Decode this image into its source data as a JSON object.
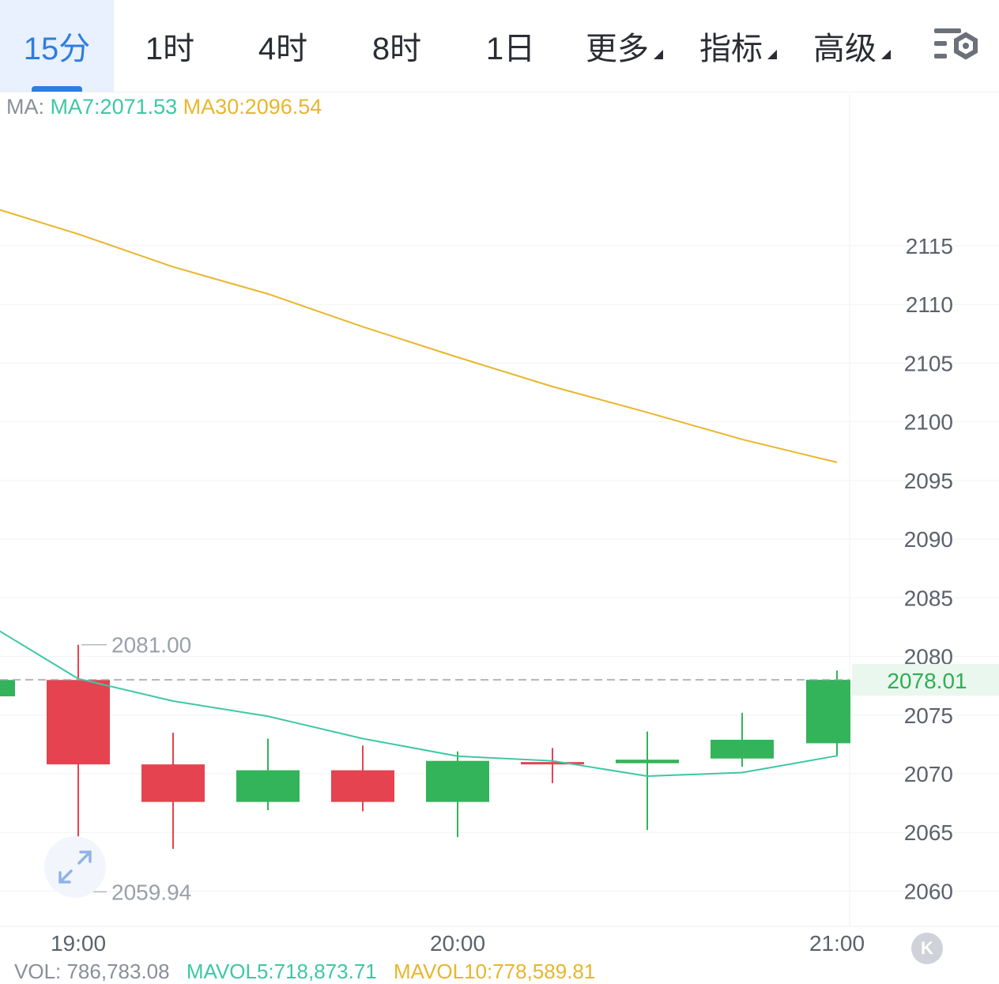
{
  "tabs": [
    {
      "label": "15分",
      "active": true
    },
    {
      "label": "1时"
    },
    {
      "label": "4时"
    },
    {
      "label": "8时"
    },
    {
      "label": "1日"
    },
    {
      "label": "更多",
      "dropdown": true
    },
    {
      "label": "指标",
      "dropdown": true
    },
    {
      "label": "高级",
      "dropdown": true
    }
  ],
  "legend": {
    "prefix": "MA:",
    "ma7": "MA7:2071.53",
    "ma30": "MA30:2096.54"
  },
  "colors": {
    "up": "#33b35a",
    "down": "#e5434f",
    "ma7": "#3ec7a5",
    "ma30": "#e8b62c",
    "accent": "#2f7de1"
  },
  "volume_row": {
    "vol": "VOL: 786,783.08",
    "mavol5": "MAVOL5:718,873.71",
    "mavol10": "MAVOL10:778,589.81"
  },
  "chart_data": {
    "type": "candlestick",
    "ylim": [
      2057,
      2128
    ],
    "yticks": [
      2060,
      2065,
      2070,
      2075,
      2080,
      2085,
      2090,
      2095,
      2100,
      2105,
      2110,
      2115
    ],
    "x_tick_labels": [
      "19:00",
      "20:00",
      "21:00"
    ],
    "x_tick_index": [
      0,
      4,
      8
    ],
    "candles": [
      {
        "open": 2076.6,
        "close": 2078.0,
        "high": 2078.0,
        "low": 2076.6
      },
      {
        "open": 2078.0,
        "close": 2070.8,
        "high": 2081.0,
        "low": 2059.94
      },
      {
        "open": 2070.8,
        "close": 2067.6,
        "high": 2073.5,
        "low": 2063.6
      },
      {
        "open": 2067.6,
        "close": 2070.3,
        "high": 2073.0,
        "low": 2066.9
      },
      {
        "open": 2070.3,
        "close": 2067.6,
        "high": 2072.4,
        "low": 2066.8
      },
      {
        "open": 2067.6,
        "close": 2071.1,
        "high": 2071.9,
        "low": 2064.6
      },
      {
        "open": 2071.0,
        "close": 2070.9,
        "high": 2072.2,
        "low": 2069.2
      },
      {
        "open": 2070.9,
        "close": 2071.2,
        "high": 2073.6,
        "low": 2065.2
      },
      {
        "open": 2071.3,
        "close": 2072.9,
        "high": 2075.2,
        "low": 2070.6
      },
      {
        "open": 2072.6,
        "close": 2078.01,
        "high": 2078.8,
        "low": 2071.5
      }
    ],
    "series": [
      {
        "name": "MA7",
        "values": [
          2083.0,
          2078.1,
          2076.2,
          2074.9,
          2073.0,
          2071.5,
          2071.1,
          2069.8,
          2070.1,
          2071.53
        ]
      },
      {
        "name": "MA30",
        "values": [
          2118.5,
          2116.0,
          2113.2,
          2110.9,
          2108.1,
          2105.5,
          2103.0,
          2100.8,
          2098.5,
          2096.54
        ]
      }
    ],
    "max_label": "2081.00",
    "min_label": "2059.94",
    "max_value": 2081.0,
    "min_value": 2059.94,
    "last_price": "2078.01",
    "last_price_value": 2078.01,
    "grid": true
  }
}
